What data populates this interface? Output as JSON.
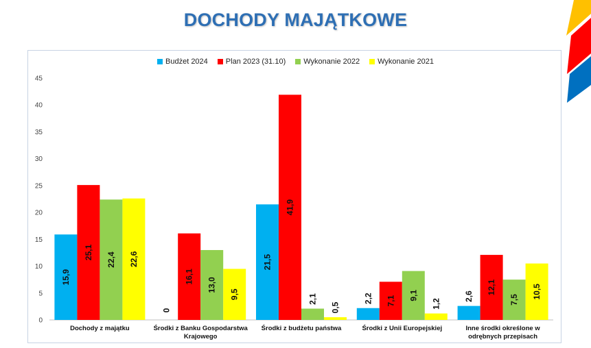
{
  "page": {
    "title": "DOCHODY MAJĄTKOWE"
  },
  "chart_data": {
    "type": "bar",
    "title": "",
    "xlabel": "",
    "ylabel": "",
    "ylim": [
      0,
      45
    ],
    "yticks": [
      0,
      5,
      10,
      15,
      20,
      25,
      30,
      35,
      40,
      45
    ],
    "grid": false,
    "legend_position": "top",
    "categories": [
      [
        "Dochody z majątku"
      ],
      [
        "Środki z Banku Gospodarstwa",
        "Krajowego"
      ],
      [
        "Środki z budżetu państwa"
      ],
      [
        "Środki z Unii Europejskiej"
      ],
      [
        "Inne środki określone w",
        "odrębnych przepisach"
      ]
    ],
    "series": [
      {
        "name": "Budżet 2024",
        "color": "#00b0f0",
        "values": [
          15.9,
          0,
          21.5,
          2.2,
          2.6
        ],
        "labels": [
          "15,9",
          "0",
          "21,5",
          "2,2",
          "2,6"
        ]
      },
      {
        "name": "Plan 2023 (31.10)",
        "color": "#ff0000",
        "values": [
          25.1,
          16.1,
          41.9,
          7.1,
          12.1
        ],
        "labels": [
          "25,1",
          "16,1",
          "41,9",
          "7,1",
          "12,1"
        ]
      },
      {
        "name": "Wykonanie 2022",
        "color": "#92d050",
        "values": [
          22.4,
          13.0,
          2.1,
          9.1,
          7.5
        ],
        "labels": [
          "22,4",
          "13,0",
          "2,1",
          "9,1",
          "7,5"
        ]
      },
      {
        "name": "Wykonanie 2021",
        "color": "#ffff00",
        "values": [
          22.6,
          9.5,
          0.5,
          1.2,
          10.5
        ],
        "labels": [
          "22,6",
          "9,5",
          "0,5",
          "1,2",
          "10,5"
        ]
      }
    ]
  },
  "decor": {
    "stripe_colors": [
      "#ffc000",
      "#ff0000",
      "#0070c0"
    ]
  }
}
